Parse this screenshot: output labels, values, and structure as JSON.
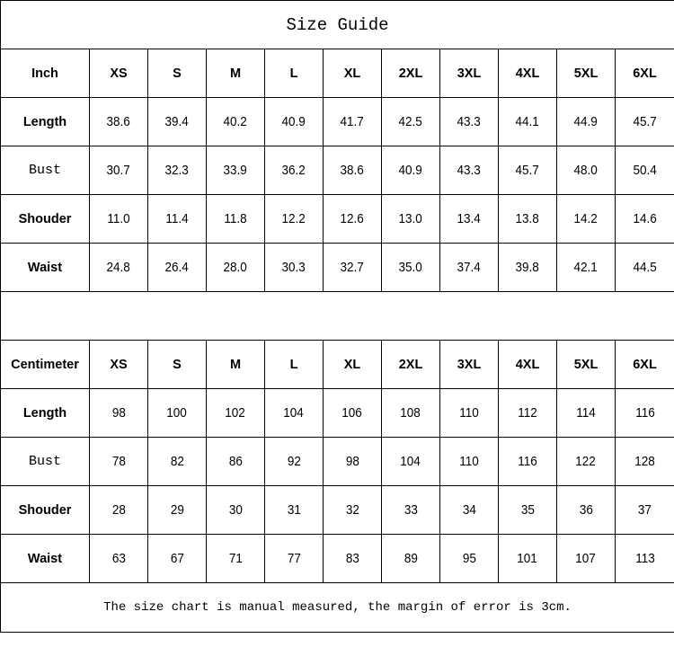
{
  "title": "Size Guide",
  "sizes": [
    "XS",
    "S",
    "M",
    "L",
    "XL",
    "2XL",
    "3XL",
    "4XL",
    "5XL",
    "6XL"
  ],
  "inch": {
    "unit_label": "Inch",
    "rows": [
      {
        "label": "Length",
        "values": [
          "38.6",
          "39.4",
          "40.2",
          "40.9",
          "41.7",
          "42.5",
          "43.3",
          "44.1",
          "44.9",
          "45.7"
        ]
      },
      {
        "label": "Bust",
        "values": [
          "30.7",
          "32.3",
          "33.9",
          "36.2",
          "38.6",
          "40.9",
          "43.3",
          "45.7",
          "48.0",
          "50.4"
        ]
      },
      {
        "label": "Shouder",
        "values": [
          "11.0",
          "11.4",
          "11.8",
          "12.2",
          "12.6",
          "13.0",
          "13.4",
          "13.8",
          "14.2",
          "14.6"
        ]
      },
      {
        "label": "Waist",
        "values": [
          "24.8",
          "26.4",
          "28.0",
          "30.3",
          "32.7",
          "35.0",
          "37.4",
          "39.8",
          "42.1",
          "44.5"
        ]
      }
    ]
  },
  "centimeter": {
    "unit_label": "Centimeter",
    "rows": [
      {
        "label": "Length",
        "values": [
          "98",
          "100",
          "102",
          "104",
          "106",
          "108",
          "110",
          "112",
          "114",
          "116"
        ]
      },
      {
        "label": "Bust",
        "values": [
          "78",
          "82",
          "86",
          "92",
          "98",
          "104",
          "110",
          "116",
          "122",
          "128"
        ]
      },
      {
        "label": "Shouder",
        "values": [
          "28",
          "29",
          "30",
          "31",
          "32",
          "33",
          "34",
          "35",
          "36",
          "37"
        ]
      },
      {
        "label": "Waist",
        "values": [
          "63",
          "67",
          "71",
          "77",
          "83",
          "89",
          "95",
          "101",
          "107",
          "113"
        ]
      }
    ]
  },
  "footnote": "The size chart is manual measured, the margin of error is 3cm."
}
